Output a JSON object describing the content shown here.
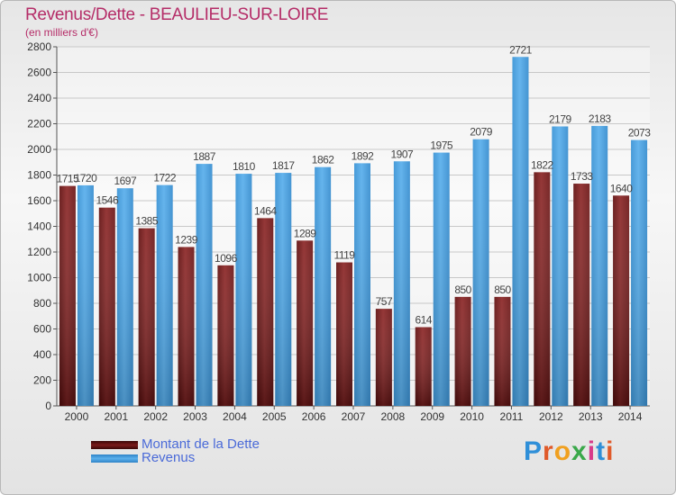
{
  "title": "Revenus/Dette - BEAULIEU-SUR-LOIRE",
  "subtitle": "(en milliers d'€)",
  "logo_text": "Proxiti",
  "colors": {
    "title": "#b52d68",
    "debt": "#7a1a1a",
    "revenue": "#4aa2e0",
    "legend_text": "#4a6ad8"
  },
  "chart_data": {
    "type": "bar",
    "categories": [
      "2000",
      "2001",
      "2002",
      "2003",
      "2004",
      "2005",
      "2006",
      "2007",
      "2008",
      "2009",
      "2010",
      "2011",
      "2012",
      "2013",
      "2014"
    ],
    "series": [
      {
        "name": "Montant de la Dette",
        "values": [
          1715,
          1546,
          1385,
          1239,
          1096,
          1464,
          1289,
          1119,
          757,
          614,
          850,
          850,
          1822,
          1733,
          1640
        ],
        "labels": [
          "1715",
          "1546",
          "1385",
          "1239",
          "1096",
          "1464",
          "1289",
          "1119",
          "757",
          "614",
          "850",
          "850",
          "1822",
          "1733",
          "1640"
        ]
      },
      {
        "name": "Revenus",
        "values": [
          1720,
          1697,
          1722,
          1887,
          1810,
          1817,
          1862,
          1892,
          1907,
          1975,
          2079,
          2721,
          2179,
          2183,
          2073
        ],
        "labels": [
          "1720",
          "1697",
          "1722",
          "1887",
          "1810",
          "1817",
          "1862",
          "1892",
          "1907",
          "1975",
          "2079",
          "2721",
          "2179",
          "2183",
          "2073"
        ]
      }
    ],
    "ylim": [
      0,
      2800
    ],
    "yticks": [
      0,
      200,
      400,
      600,
      800,
      1000,
      1200,
      1400,
      1600,
      1800,
      2000,
      2200,
      2400,
      2600,
      2800
    ],
    "grid": true,
    "legend_position": "bottom-left"
  }
}
